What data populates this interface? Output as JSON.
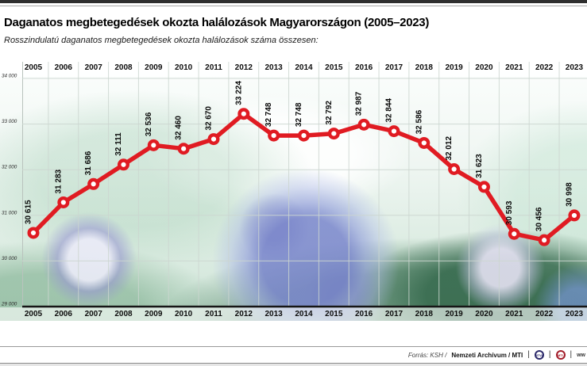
{
  "page": {
    "title": "Daganatos megbetegedések okozta halálozások Magyarországon (2005–2023)",
    "subtitle": "Rosszindulatú daganatos megbetegedések okozta halálozások száma összesen:"
  },
  "chart_data": {
    "type": "line",
    "title": "Daganatos megbetegedések okozta halálozások Magyarországon (2005–2023)",
    "subtitle": "Rosszindulatú daganatos megbetegedések okozta halálozások száma összesen:",
    "categories": [
      "2005",
      "2006",
      "2007",
      "2008",
      "2009",
      "2010",
      "2011",
      "2012",
      "2013",
      "2014",
      "2015",
      "2016",
      "2017",
      "2018",
      "2019",
      "2020",
      "2021",
      "2022",
      "2023"
    ],
    "series": [
      {
        "name": "Halálozások száma összesen",
        "values": [
          30615,
          31283,
          31686,
          32111,
          32536,
          32460,
          32670,
          33224,
          32748,
          32748,
          32792,
          32987,
          32844,
          32586,
          32012,
          31623,
          30593,
          30456,
          30998
        ]
      }
    ],
    "value_labels": [
      "30 615",
      "31 283",
      "31 686",
      "32 111",
      "32 536",
      "32 460",
      "32 670",
      "33 224",
      "32 748",
      "32 748",
      "32 792",
      "32 987",
      "32 844",
      "32 586",
      "32 012",
      "31 623",
      "30 593",
      "30 456",
      "30 998"
    ],
    "ylim": [
      29000,
      34000
    ],
    "ytick_interval": 1000,
    "ytick_labels": [
      "34 000",
      "33 000",
      "32 000",
      "31 000",
      "30 000",
      "29 000"
    ],
    "grid": true,
    "legend_position": "none",
    "line_color": "#e01b22",
    "marker_style": "white-filled-circle-red-ring",
    "value_label_rotation": -90
  },
  "footer": {
    "source_prefix": "Forrás: KSH /",
    "source_bold": "Nemzeti Archívum / MTI",
    "separator": "|",
    "logo_mtva": "MTVA",
    "logo_mti": "MTI",
    "trailing_fragment": "ww"
  },
  "colors": {
    "accent_red": "#e01b22",
    "axis_black": "#161616",
    "gridline": "#ccd6d0",
    "background_green": "#cfe4d8",
    "cell_purple": "#7a86cd"
  }
}
